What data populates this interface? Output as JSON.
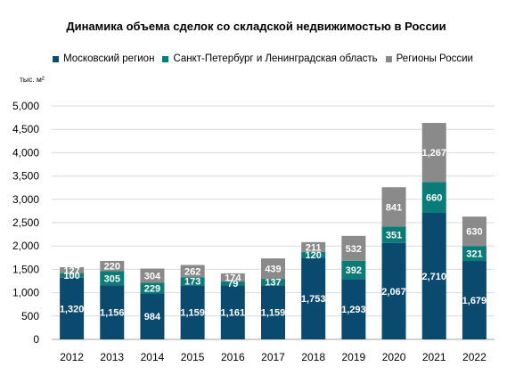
{
  "chart_data": {
    "type": "bar",
    "stacked": true,
    "title": "Динамика объема сделок со складской недвижимостью в России",
    "unit_label": "тыс. м²",
    "categories": [
      "2012",
      "2013",
      "2014",
      "2015",
      "2016",
      "2017",
      "2018",
      "2019",
      "2020",
      "2021",
      "2022"
    ],
    "series": [
      {
        "name": "Московский регион",
        "color": "#0b4a6f",
        "values": [
          1320,
          1156,
          984,
          1159,
          1161,
          1159,
          1753,
          1293,
          2067,
          2710,
          1679
        ],
        "labels": [
          "1,320",
          "1,156",
          "984",
          "1,159",
          "1,161",
          "1,159",
          "1,753",
          "1,293",
          "2,067",
          "2,710",
          "1,679"
        ]
      },
      {
        "name": "Санкт-Петербург и Ленинградская область",
        "color": "#0a7c78",
        "values": [
          100,
          305,
          229,
          173,
          79,
          137,
          120,
          392,
          351,
          660,
          321
        ],
        "labels": [
          "100",
          "305",
          "229",
          "173",
          "79",
          "137",
          "120",
          "392",
          "351",
          "660",
          "321"
        ]
      },
      {
        "name": "Регионы России",
        "color": "#8a8a8a",
        "values": [
          127,
          220,
          304,
          262,
          174,
          439,
          211,
          532,
          841,
          1267,
          630
        ],
        "labels": [
          "127",
          "220",
          "304",
          "262",
          "174",
          "439",
          "211",
          "532",
          "841",
          "1,267",
          "630"
        ]
      }
    ],
    "ylim": [
      0,
      5000
    ],
    "yticks": [
      0,
      500,
      1000,
      1500,
      2000,
      2500,
      3000,
      3500,
      4000,
      4500,
      5000
    ],
    "ytick_labels": [
      "0",
      "500",
      "1,000",
      "1,500",
      "2,000",
      "2,500",
      "3,000",
      "3,500",
      "4,000",
      "4,500",
      "5,000"
    ],
    "grid": true,
    "legend_position": "top"
  }
}
